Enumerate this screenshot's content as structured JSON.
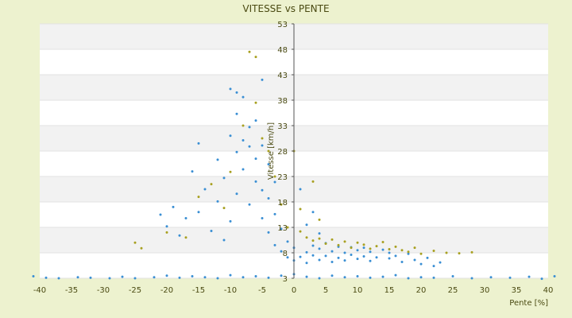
{
  "chart_data": {
    "type": "scatter",
    "title": "VITESSE vs PENTE",
    "xlabel": "Pente [%]",
    "ylabel": "Vitesse [km/h]",
    "xlim": [
      -40,
      40
    ],
    "ylim": [
      3,
      53
    ],
    "x_ticks": [
      -40,
      -35,
      -30,
      -25,
      -20,
      -15,
      -10,
      -5,
      0,
      5,
      10,
      15,
      20,
      25,
      30,
      35,
      40
    ],
    "y_ticks": [
      3,
      8,
      13,
      18,
      23,
      28,
      33,
      38,
      43,
      48,
      53
    ],
    "grid": "horizontal bands",
    "legend": "none",
    "colors": {
      "plot_background": "#ffffff",
      "band": "#f2f2f2",
      "series_primary": "#3a8fd4",
      "series_secondary": "#a8a020",
      "page_background": "#edf2cf"
    },
    "series": [
      {
        "values": [
          [
            -41,
            3.4
          ],
          [
            -39,
            3.1
          ],
          [
            -37,
            3.0
          ],
          [
            -34,
            3.2
          ],
          [
            -32,
            3.1
          ],
          [
            -29,
            3.0
          ],
          [
            -27,
            3.3
          ],
          [
            -25,
            3.0
          ],
          [
            -22,
            3.2
          ],
          [
            -20,
            3.5
          ],
          [
            -18,
            3.1
          ],
          [
            -16,
            3.4
          ],
          [
            -14,
            3.2
          ],
          [
            -12,
            3.0
          ],
          [
            -10,
            3.6
          ],
          [
            -8,
            3.2
          ],
          [
            -6,
            3.4
          ],
          [
            -4,
            3.1
          ],
          [
            -2,
            3.5
          ],
          [
            0,
            3.8
          ],
          [
            2,
            3.3
          ],
          [
            4,
            3.0
          ],
          [
            6,
            3.5
          ],
          [
            8,
            3.2
          ],
          [
            10,
            3.4
          ],
          [
            12,
            3.1
          ],
          [
            14,
            3.3
          ],
          [
            16,
            3.6
          ],
          [
            18,
            3.0
          ],
          [
            20,
            3.2
          ],
          [
            22,
            3.1
          ],
          [
            25,
            3.4
          ],
          [
            28,
            3.0
          ],
          [
            31,
            3.2
          ],
          [
            34,
            3.1
          ],
          [
            37,
            3.3
          ],
          [
            39,
            2.9
          ],
          [
            41,
            3.4
          ],
          [
            -21,
            15.5
          ],
          [
            -20,
            13.2
          ],
          [
            -19,
            17.0
          ],
          [
            -18,
            11.4
          ],
          [
            -17,
            14.8
          ],
          [
            -16,
            24.0
          ],
          [
            -15,
            16.0
          ],
          [
            -15,
            29.5
          ],
          [
            -14,
            20.5
          ],
          [
            -13,
            12.3
          ],
          [
            -12,
            18.1
          ],
          [
            -12,
            26.3
          ],
          [
            -11,
            10.5
          ],
          [
            -11,
            22.7
          ],
          [
            -10,
            14.2
          ],
          [
            -10,
            31.0
          ],
          [
            -9,
            19.6
          ],
          [
            -9,
            27.8
          ],
          [
            -9,
            35.3
          ],
          [
            -8,
            24.4
          ],
          [
            -8,
            30.1
          ],
          [
            -8,
            38.6
          ],
          [
            -7,
            17.5
          ],
          [
            -7,
            28.9
          ],
          [
            -7,
            32.7
          ],
          [
            -6,
            22.0
          ],
          [
            -6,
            26.5
          ],
          [
            -6,
            34.0
          ],
          [
            -5,
            14.8
          ],
          [
            -5,
            20.3
          ],
          [
            -5,
            29.1
          ],
          [
            -4,
            12.0
          ],
          [
            -4,
            18.7
          ],
          [
            -4,
            25.4
          ],
          [
            -3,
            9.5
          ],
          [
            -3,
            15.6
          ],
          [
            -3,
            21.9
          ],
          [
            -2,
            8.3
          ],
          [
            -2,
            12.7
          ],
          [
            -1,
            7.1
          ],
          [
            -1,
            10.2
          ],
          [
            0,
            6.5
          ],
          [
            0,
            9.0
          ],
          [
            -10,
            40.2
          ],
          [
            -9,
            39.5
          ],
          [
            -5,
            42.0
          ],
          [
            1,
            7.2
          ],
          [
            2,
            8.1
          ],
          [
            2,
            6.0
          ],
          [
            3,
            9.4
          ],
          [
            3,
            7.5
          ],
          [
            4,
            6.6
          ],
          [
            4,
            8.8
          ],
          [
            5,
            7.4
          ],
          [
            5,
            9.9
          ],
          [
            6,
            6.2
          ],
          [
            6,
            8.3
          ],
          [
            7,
            7.0
          ],
          [
            7,
            9.2
          ],
          [
            8,
            6.5
          ],
          [
            8,
            8.0
          ],
          [
            9,
            7.6
          ],
          [
            9,
            9.1
          ],
          [
            10,
            6.8
          ],
          [
            10,
            8.5
          ],
          [
            11,
            7.3
          ],
          [
            11,
            9.0
          ],
          [
            12,
            6.4
          ],
          [
            12,
            8.2
          ],
          [
            13,
            7.1
          ],
          [
            14,
            8.6
          ],
          [
            15,
            6.9
          ],
          [
            15,
            8.0
          ],
          [
            16,
            7.4
          ],
          [
            17,
            6.2
          ],
          [
            18,
            7.8
          ],
          [
            19,
            6.6
          ],
          [
            20,
            5.8
          ],
          [
            21,
            7.0
          ],
          [
            22,
            5.4
          ],
          [
            23,
            6.1
          ],
          [
            2,
            13.5
          ],
          [
            3,
            16.0
          ],
          [
            1,
            20.5
          ],
          [
            4,
            11.8
          ]
        ]
      },
      {
        "values": [
          [
            -25,
            10.0
          ],
          [
            -24,
            8.9
          ],
          [
            -20,
            12.0
          ],
          [
            -17,
            11.0
          ],
          [
            -15,
            19.0
          ],
          [
            -13,
            21.5
          ],
          [
            -11,
            16.8
          ],
          [
            -10,
            23.9
          ],
          [
            -8,
            33.0
          ],
          [
            -7,
            47.5
          ],
          [
            -6,
            46.5
          ],
          [
            -6,
            37.5
          ],
          [
            -5,
            30.5
          ],
          [
            -4,
            28.0
          ],
          [
            -3,
            23.0
          ],
          [
            -2,
            17.5
          ],
          [
            -1,
            13.0
          ],
          [
            0,
            28.0
          ],
          [
            1,
            12.2
          ],
          [
            2,
            11.0
          ],
          [
            3,
            10.4
          ],
          [
            4,
            10.8
          ],
          [
            5,
            9.8
          ],
          [
            6,
            10.6
          ],
          [
            7,
            9.5
          ],
          [
            8,
            10.2
          ],
          [
            9,
            9.0
          ],
          [
            10,
            10.0
          ],
          [
            11,
            9.6
          ],
          [
            12,
            8.8
          ],
          [
            13,
            9.3
          ],
          [
            14,
            10.1
          ],
          [
            15,
            8.7
          ],
          [
            16,
            9.2
          ],
          [
            17,
            8.5
          ],
          [
            18,
            8.2
          ],
          [
            19,
            9.0
          ],
          [
            20,
            7.8
          ],
          [
            22,
            8.4
          ],
          [
            24,
            8.0
          ],
          [
            26,
            7.9
          ],
          [
            28,
            8.1
          ],
          [
            3,
            22.0
          ],
          [
            4,
            14.5
          ],
          [
            1,
            16.6
          ]
        ]
      }
    ]
  }
}
